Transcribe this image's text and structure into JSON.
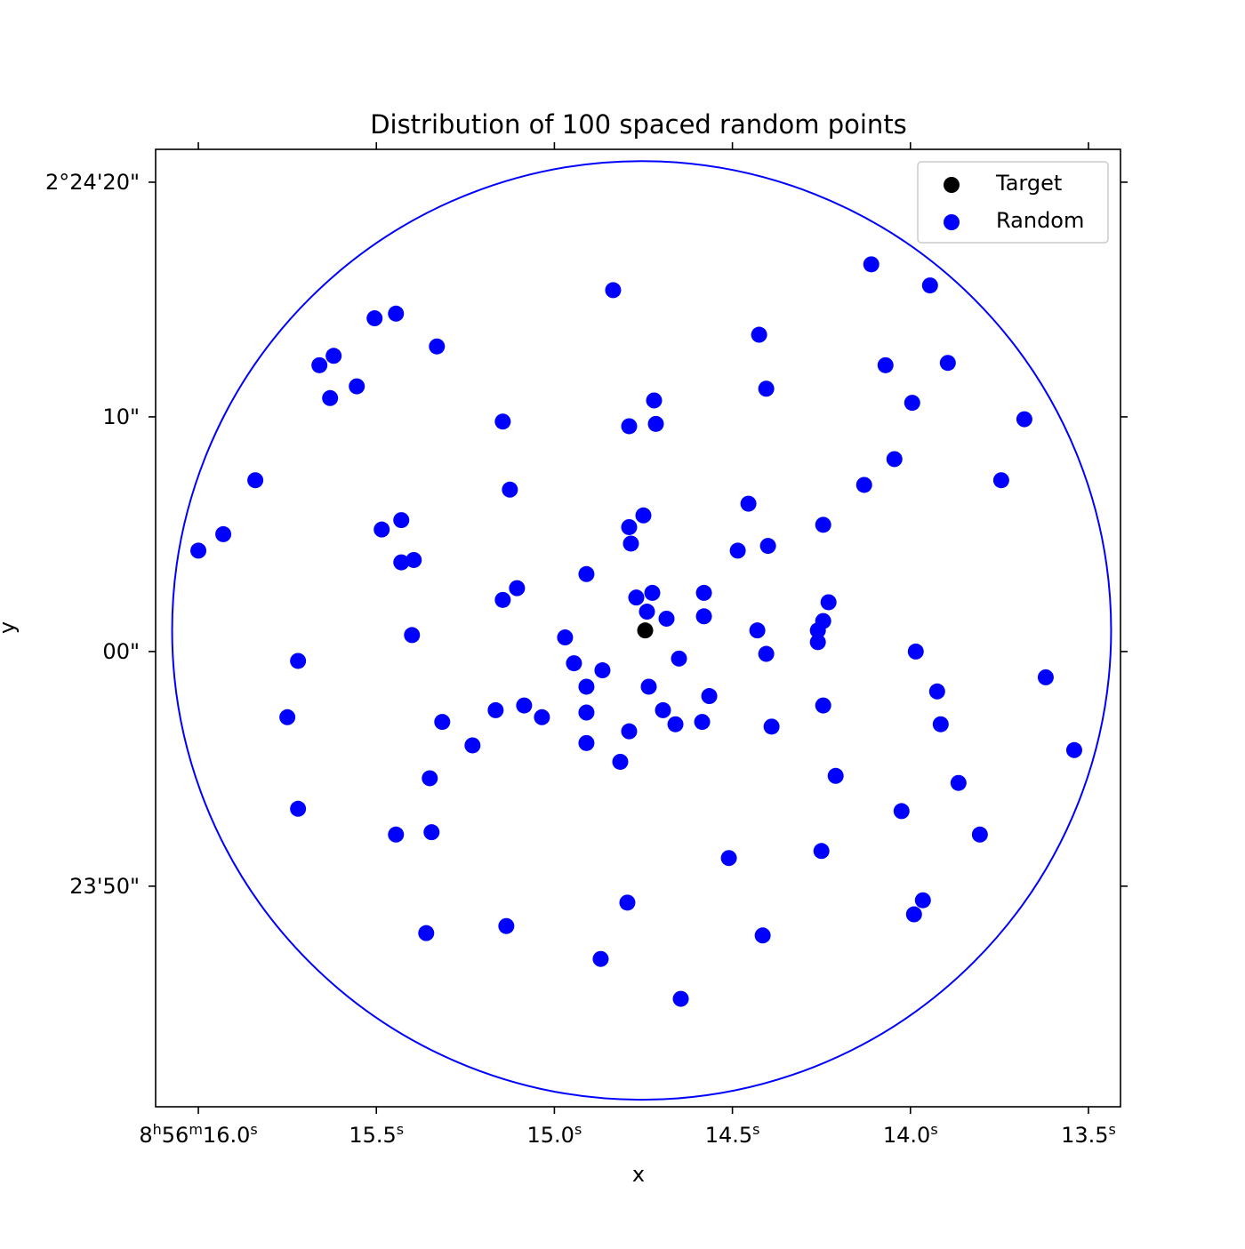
{
  "chart_data": {
    "type": "scatter",
    "title": "Distribution of 100 spaced random points",
    "xlabel": "x",
    "ylabel": "y",
    "x_unit": "RA seconds (8h56m)",
    "y_unit": "Dec arcseconds offset from 2°24'00\"",
    "xlim": [
      16.12,
      13.41
    ],
    "ylim": [
      -19.4,
      21.4
    ],
    "x_ticks": [
      {
        "value": 16.0,
        "main": "8",
        "sup1": "h",
        "mid": "56",
        "sup2": "m",
        "last": "16.0",
        "sup3": "s"
      },
      {
        "value": 15.5,
        "main": "15.5",
        "sup1": "s"
      },
      {
        "value": 15.0,
        "main": "15.0",
        "sup1": "s"
      },
      {
        "value": 14.5,
        "main": "14.5",
        "sup1": "s"
      },
      {
        "value": 14.0,
        "main": "14.0",
        "sup1": "s"
      },
      {
        "value": 13.5,
        "main": "13.5",
        "sup1": "s"
      }
    ],
    "y_ticks": [
      {
        "value": 20,
        "label": "2°24'20\""
      },
      {
        "value": 10,
        "label": "10\""
      },
      {
        "value": 0,
        "label": "00\""
      },
      {
        "value": -10,
        "label": "23'50\""
      }
    ],
    "circle": {
      "center_x": 14.755,
      "center_y": 0.9,
      "radius_y": 20.0,
      "color": "#0000ff"
    },
    "grid": false,
    "legend": {
      "placement": "top-right",
      "entries": [
        "Target",
        "Random"
      ]
    },
    "series": [
      {
        "name": "Target",
        "color": "#000000",
        "points": [
          {
            "x": 14.745,
            "y": 0.9
          }
        ]
      },
      {
        "name": "Random",
        "color": "#0000ff",
        "points": [
          {
            "x": 16.0,
            "y": 4.3
          },
          {
            "x": 15.93,
            "y": 5.0
          },
          {
            "x": 15.84,
            "y": 7.3
          },
          {
            "x": 15.75,
            "y": -2.8
          },
          {
            "x": 15.72,
            "y": -0.4
          },
          {
            "x": 15.72,
            "y": -6.7
          },
          {
            "x": 15.66,
            "y": 12.2
          },
          {
            "x": 15.63,
            "y": 10.8
          },
          {
            "x": 15.62,
            "y": 12.6
          },
          {
            "x": 15.555,
            "y": 11.3
          },
          {
            "x": 15.505,
            "y": 14.2
          },
          {
            "x": 15.485,
            "y": 5.2
          },
          {
            "x": 15.445,
            "y": 14.4
          },
          {
            "x": 15.43,
            "y": 5.6
          },
          {
            "x": 15.43,
            "y": 3.8
          },
          {
            "x": 15.4,
            "y": 0.7
          },
          {
            "x": 15.395,
            "y": 3.9
          },
          {
            "x": 15.445,
            "y": -7.8
          },
          {
            "x": 15.33,
            "y": 13.0
          },
          {
            "x": 15.315,
            "y": -3.0
          },
          {
            "x": 15.35,
            "y": -5.4
          },
          {
            "x": 15.345,
            "y": -7.7
          },
          {
            "x": 15.36,
            "y": -12.0
          },
          {
            "x": 15.23,
            "y": -4.0
          },
          {
            "x": 15.165,
            "y": -2.5
          },
          {
            "x": 15.145,
            "y": 9.8
          },
          {
            "x": 15.145,
            "y": 2.2
          },
          {
            "x": 15.125,
            "y": 6.9
          },
          {
            "x": 15.105,
            "y": 2.7
          },
          {
            "x": 15.085,
            "y": -2.3
          },
          {
            "x": 15.135,
            "y": -11.7
          },
          {
            "x": 15.035,
            "y": -2.8
          },
          {
            "x": 14.97,
            "y": 0.6
          },
          {
            "x": 14.945,
            "y": -0.5
          },
          {
            "x": 14.91,
            "y": 3.3
          },
          {
            "x": 14.91,
            "y": -1.5
          },
          {
            "x": 14.91,
            "y": -2.6
          },
          {
            "x": 14.91,
            "y": -3.9
          },
          {
            "x": 14.865,
            "y": -0.8
          },
          {
            "x": 14.87,
            "y": -13.1
          },
          {
            "x": 14.835,
            "y": 15.4
          },
          {
            "x": 14.815,
            "y": -4.7
          },
          {
            "x": 14.79,
            "y": 9.6
          },
          {
            "x": 14.79,
            "y": 5.3
          },
          {
            "x": 14.785,
            "y": 4.6
          },
          {
            "x": 14.79,
            "y": -3.4
          },
          {
            "x": 14.795,
            "y": -10.7
          },
          {
            "x": 14.77,
            "y": 2.3
          },
          {
            "x": 14.75,
            "y": 5.8
          },
          {
            "x": 14.74,
            "y": 1.7
          },
          {
            "x": 14.735,
            "y": -1.5
          },
          {
            "x": 14.725,
            "y": 2.5
          },
          {
            "x": 14.72,
            "y": 10.7
          },
          {
            "x": 14.715,
            "y": 9.7
          },
          {
            "x": 14.695,
            "y": -2.5
          },
          {
            "x": 14.685,
            "y": 1.4
          },
          {
            "x": 14.66,
            "y": -3.1
          },
          {
            "x": 14.65,
            "y": -0.3
          },
          {
            "x": 14.645,
            "y": -14.8
          },
          {
            "x": 14.58,
            "y": 2.5
          },
          {
            "x": 14.58,
            "y": 1.5
          },
          {
            "x": 14.585,
            "y": -3.0
          },
          {
            "x": 14.565,
            "y": -1.9
          },
          {
            "x": 14.51,
            "y": -8.8
          },
          {
            "x": 14.485,
            "y": 4.3
          },
          {
            "x": 14.455,
            "y": 6.3
          },
          {
            "x": 14.425,
            "y": 13.5
          },
          {
            "x": 14.43,
            "y": 0.9
          },
          {
            "x": 14.415,
            "y": -12.1
          },
          {
            "x": 14.405,
            "y": 11.2
          },
          {
            "x": 14.4,
            "y": 4.5
          },
          {
            "x": 14.405,
            "y": -0.1
          },
          {
            "x": 14.39,
            "y": -3.2
          },
          {
            "x": 14.26,
            "y": 0.9
          },
          {
            "x": 14.26,
            "y": 0.4
          },
          {
            "x": 14.245,
            "y": 5.4
          },
          {
            "x": 14.245,
            "y": 1.3
          },
          {
            "x": 14.245,
            "y": -2.3
          },
          {
            "x": 14.25,
            "y": -8.5
          },
          {
            "x": 14.23,
            "y": 2.1
          },
          {
            "x": 14.21,
            "y": -5.3
          },
          {
            "x": 14.13,
            "y": 7.1
          },
          {
            "x": 14.11,
            "y": 16.5
          },
          {
            "x": 14.07,
            "y": 12.2
          },
          {
            "x": 14.045,
            "y": 8.2
          },
          {
            "x": 14.025,
            "y": -6.8
          },
          {
            "x": 13.995,
            "y": 10.6
          },
          {
            "x": 13.99,
            "y": -11.2
          },
          {
            "x": 13.985,
            "y": 0.0
          },
          {
            "x": 13.965,
            "y": -10.6
          },
          {
            "x": 13.945,
            "y": 15.6
          },
          {
            "x": 13.925,
            "y": -1.7
          },
          {
            "x": 13.915,
            "y": -3.1
          },
          {
            "x": 13.895,
            "y": 12.3
          },
          {
            "x": 13.865,
            "y": -5.6
          },
          {
            "x": 13.805,
            "y": -7.8
          },
          {
            "x": 13.745,
            "y": 7.3
          },
          {
            "x": 13.68,
            "y": 9.9
          },
          {
            "x": 13.62,
            "y": -1.1
          },
          {
            "x": 13.54,
            "y": -4.2
          }
        ]
      }
    ]
  }
}
